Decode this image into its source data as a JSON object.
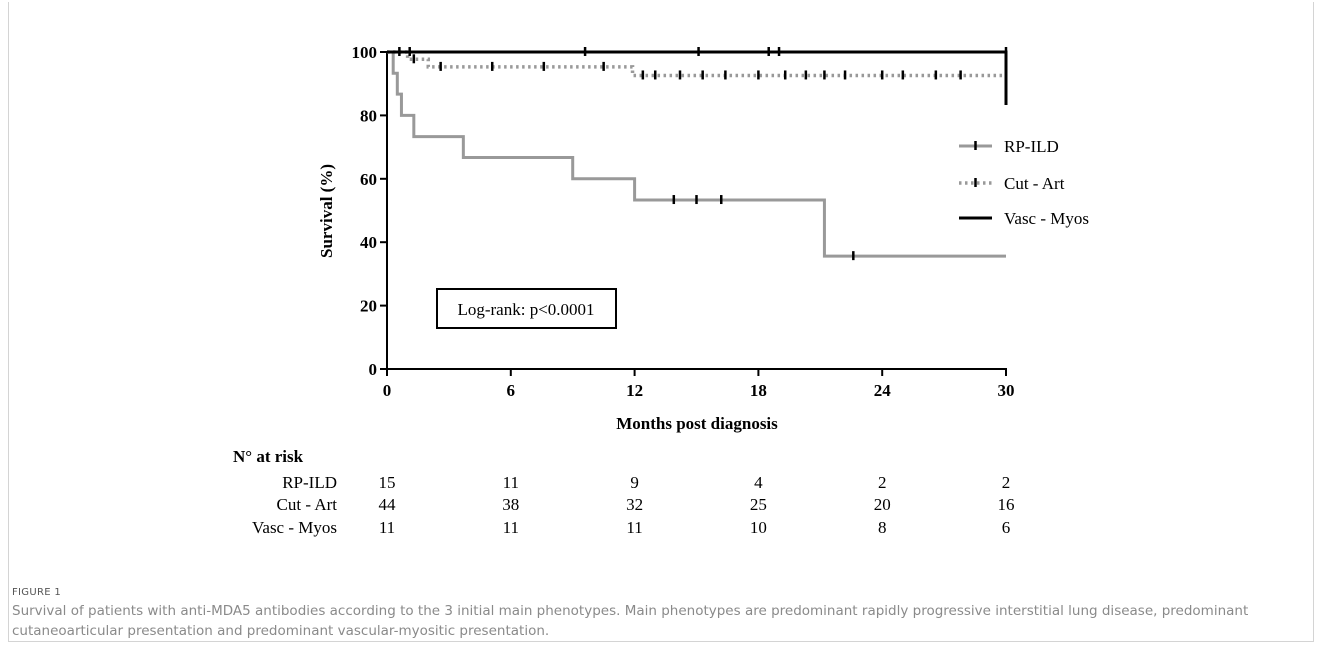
{
  "chart_data": {
    "type": "line",
    "xlabel": "Months post diagnosis",
    "ylabel": "Survival (%)",
    "xlim": [
      0,
      30
    ],
    "ylim": [
      0,
      100
    ],
    "xticks": [
      0,
      6,
      12,
      18,
      24,
      30
    ],
    "yticks": [
      0,
      20,
      40,
      60,
      80,
      100
    ],
    "grid": false,
    "legend_position": "right",
    "annotation": "Log-rank: p<0.0001",
    "series": [
      {
        "name": "RP-ILD",
        "color": "#999999",
        "style": "solid",
        "x": [
          0,
          0.3,
          0.5,
          0.7,
          1.3,
          3.7,
          9.0,
          12.0,
          21.2,
          30.0
        ],
        "y": [
          100,
          93.3,
          86.7,
          80.0,
          73.3,
          66.7,
          60.0,
          53.3,
          35.6,
          35.6
        ],
        "censored": [
          [
            13.9,
            53.3
          ],
          [
            15.0,
            53.3
          ],
          [
            16.2,
            53.3
          ],
          [
            22.6,
            35.6
          ]
        ]
      },
      {
        "name": "Cut - Art",
        "color": "#999999",
        "style": "dotted",
        "x": [
          0,
          1.0,
          2.0,
          11.9,
          30.0
        ],
        "y": [
          100,
          97.7,
          95.3,
          92.6,
          92.6
        ],
        "censored": [
          [
            0.6,
            100
          ],
          [
            1.3,
            97.7
          ],
          [
            2.6,
            95.3
          ],
          [
            5.1,
            95.3
          ],
          [
            7.6,
            95.3
          ],
          [
            10.5,
            95.3
          ],
          [
            12.4,
            92.6
          ],
          [
            13.0,
            92.6
          ],
          [
            14.2,
            92.6
          ],
          [
            15.3,
            92.6
          ],
          [
            16.4,
            92.6
          ],
          [
            18.0,
            92.6
          ],
          [
            19.3,
            92.6
          ],
          [
            20.3,
            92.6
          ],
          [
            21.2,
            92.6
          ],
          [
            22.2,
            92.6
          ],
          [
            24.0,
            92.6
          ],
          [
            25.0,
            92.6
          ],
          [
            26.6,
            92.6
          ],
          [
            27.8,
            92.6
          ]
        ]
      },
      {
        "name": "Vasc - Myos",
        "color": "#000000",
        "style": "solid",
        "x": [
          0,
          30.0,
          30.0
        ],
        "y": [
          100,
          100,
          83.3
        ],
        "censored": [
          [
            1.1,
            100
          ],
          [
            9.6,
            100
          ],
          [
            15.1,
            100
          ],
          [
            18.5,
            100
          ],
          [
            19.0,
            100
          ],
          [
            30.0,
            100
          ]
        ]
      }
    ],
    "risk_table": {
      "header": "N° at risk",
      "times": [
        0,
        6,
        12,
        18,
        24,
        30
      ],
      "rows": [
        {
          "label": "RP-ILD",
          "values": [
            "15",
            "11",
            "9",
            "4",
            "2",
            "2"
          ]
        },
        {
          "label": "Cut - Art",
          "values": [
            "44",
            "38",
            "32",
            "25",
            "20",
            "16"
          ]
        },
        {
          "label": "Vasc - Myos",
          "values": [
            "11",
            "11",
            "11",
            "10",
            "8",
            "6"
          ]
        }
      ]
    }
  },
  "caption": {
    "label": "FIGURE 1",
    "text": "Survival of patients with anti-MDA5 antibodies according to the 3 initial main phenotypes. Main phenotypes are predominant rapidly progressive interstitial lung disease, predominant cutaneoarticular presentation and predominant vascular-myositic presentation."
  }
}
